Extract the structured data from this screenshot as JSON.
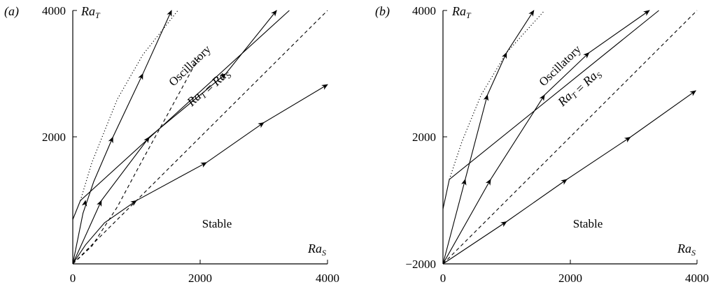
{
  "chart_data": [
    {
      "type": "line",
      "panel_label": "(a)",
      "xlabel": "Ra_S",
      "ylabel": "Ra_T",
      "xlim": [
        0,
        4000
      ],
      "ylim": [
        0,
        4000
      ],
      "x_ticks": [
        "0",
        "2000",
        "4000"
      ],
      "y_ticks": [
        "2000",
        "4000"
      ],
      "region_labels": {
        "oscillatory": "Oscillatory",
        "stable": "Stable"
      },
      "diagonal_label": "Ra_T = Ra_S",
      "series": [
        {
          "style": "solid",
          "points": [
            [
              0,
              700
            ],
            [
              120,
              1000
            ],
            [
              3400,
              4000
            ]
          ]
        },
        {
          "style": "dotted",
          "points": [
            [
              120,
              1000
            ],
            [
              300,
              1600
            ],
            [
              700,
              2600
            ],
            [
              1100,
              3300
            ],
            [
              1650,
              4000
            ]
          ]
        },
        {
          "style": "dashed",
          "points": [
            [
              0,
              0
            ],
            [
              4000,
              4000
            ]
          ]
        },
        {
          "style": "dashed",
          "points": [
            [
              0,
              0
            ],
            [
              300,
              280
            ],
            [
              700,
              900
            ],
            [
              1100,
              1650
            ],
            [
              1500,
              2380
            ],
            [
              2000,
              3300
            ]
          ]
        },
        {
          "style": "solid",
          "arrow": true,
          "arrow_at": [
            [
              200,
              1000
            ],
            [
              630,
              2000
            ],
            [
              1100,
              3000
            ],
            [
              1550,
              4000
            ]
          ],
          "points": [
            [
              0,
              0
            ],
            [
              160,
              800
            ],
            [
              330,
              1300
            ],
            [
              630,
              2000
            ],
            [
              1100,
              3000
            ],
            [
              1550,
              4000
            ]
          ]
        },
        {
          "style": "solid",
          "arrow": true,
          "arrow_at": [
            [
              450,
              1000
            ],
            [
              1200,
              2000
            ],
            [
              2400,
              3000
            ],
            [
              3200,
              4000
            ]
          ],
          "points": [
            [
              0,
              0
            ],
            [
              450,
              1000
            ],
            [
              1200,
              2000
            ],
            [
              2400,
              3000
            ],
            [
              3200,
              4000
            ]
          ]
        },
        {
          "style": "solid",
          "arrow": true,
          "arrow_at": [
            [
              1000,
              1000
            ],
            [
              2100,
              1600
            ],
            [
              3000,
              2230
            ],
            [
              4000,
              2830
            ]
          ],
          "points": [
            [
              0,
              0
            ],
            [
              200,
              300
            ],
            [
              500,
              650
            ],
            [
              1000,
              1000
            ],
            [
              2100,
              1600
            ],
            [
              3000,
              2230
            ],
            [
              4000,
              2830
            ]
          ]
        }
      ]
    },
    {
      "type": "line",
      "panel_label": "(b)",
      "xlabel": "Ra_S",
      "ylabel": "Ra_T",
      "xlim": [
        0,
        4000
      ],
      "ylim": [
        -2000,
        4000
      ],
      "x_ticks": [
        "0",
        "2000",
        "4000"
      ],
      "y_ticks": [
        "−2000",
        "2000",
        "4000"
      ],
      "region_labels": {
        "oscillatory": "Oscillatory",
        "stable": "Stable"
      },
      "diagonal_label": "Ra_T = Ra_S",
      "series": [
        {
          "style": "solid",
          "points": [
            [
              0,
              -700
            ],
            [
              100,
              0
            ],
            [
              3400,
              4000
            ]
          ]
        },
        {
          "style": "dotted",
          "points": [
            [
              100,
              0
            ],
            [
              300,
              900
            ],
            [
              600,
              2000
            ],
            [
              1000,
              3000
            ],
            [
              1600,
              4000
            ]
          ]
        },
        {
          "style": "dashed",
          "points": [
            [
              0,
              -2000
            ],
            [
              4000,
              4000
            ]
          ]
        },
        {
          "style": "solid",
          "arrow": true,
          "arrow_at": [
            [
              350,
              0
            ],
            [
              700,
              2000
            ],
            [
              1000,
              3000
            ],
            [
              1430,
              4000
            ]
          ],
          "points": [
            [
              0,
              -2000
            ],
            [
              350,
              0
            ],
            [
              700,
              2000
            ],
            [
              1000,
              3000
            ],
            [
              1430,
              4000
            ]
          ]
        },
        {
          "style": "solid",
          "arrow": true,
          "arrow_at": [
            [
              750,
              0
            ],
            [
              1600,
              2000
            ],
            [
              2300,
              3000
            ],
            [
              3250,
              4000
            ]
          ],
          "points": [
            [
              0,
              -2000
            ],
            [
              750,
              0
            ],
            [
              1600,
              2000
            ],
            [
              2300,
              3000
            ],
            [
              3250,
              4000
            ]
          ]
        },
        {
          "style": "solid",
          "arrow": true,
          "arrow_at": [
            [
              1000,
              -1000
            ],
            [
              1950,
              0
            ],
            [
              2950,
              1000
            ],
            [
              3980,
              2100
            ]
          ],
          "points": [
            [
              0,
              -2000
            ],
            [
              1000,
              -1000
            ],
            [
              1950,
              0
            ],
            [
              2950,
              1000
            ],
            [
              3980,
              2100
            ]
          ]
        }
      ]
    }
  ]
}
